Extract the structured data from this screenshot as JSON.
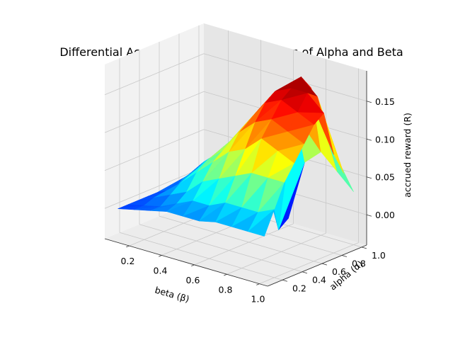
{
  "chart_data": {
    "type": "surface3d",
    "title": "Differential Accrued Reward across values of Alpha and Beta",
    "xlabel": "beta (β)",
    "ylabel": "alpha (α)",
    "zlabel": "accrued reward (R)",
    "x_ticks": [
      "0.2",
      "0.4",
      "0.6",
      "0.8",
      "1.0"
    ],
    "y_ticks": [
      "0.2",
      "0.4",
      "0.6",
      "0.8",
      "1.0"
    ],
    "z_ticks": [
      "0.00",
      "0.05",
      "0.10",
      "0.15"
    ],
    "xlim": [
      0.05,
      1.05
    ],
    "ylim": [
      0.05,
      1.05
    ],
    "zlim": [
      -0.04,
      0.19
    ],
    "colormap": "jet",
    "grid": true,
    "x": [
      0.1,
      0.2,
      0.3,
      0.4,
      0.5,
      0.6,
      0.7,
      0.8,
      0.9,
      1.0
    ],
    "y": [
      0.1,
      0.2,
      0.3,
      0.4,
      0.5,
      0.6,
      0.7,
      0.8,
      0.9,
      1.0
    ],
    "z": [
      [
        0.0,
        0.005,
        0.01,
        0.015,
        0.015,
        0.015,
        0.02,
        0.02,
        0.02,
        0.02
      ],
      [
        0.0,
        0.005,
        0.01,
        0.02,
        0.03,
        0.03,
        0.04,
        0.04,
        0.04,
        0.05
      ],
      [
        0.0,
        0.01,
        0.02,
        0.03,
        0.05,
        0.06,
        0.07,
        0.08,
        0.08,
        0.08
      ],
      [
        0.0,
        0.01,
        0.03,
        0.05,
        0.07,
        0.09,
        0.1,
        0.12,
        0.11,
        0.1
      ],
      [
        0.0,
        0.01,
        0.03,
        0.06,
        0.08,
        0.11,
        0.13,
        0.14,
        0.13,
        0.12
      ],
      [
        0.0,
        0.02,
        0.04,
        0.06,
        0.09,
        0.12,
        0.15,
        0.16,
        0.15,
        0.14
      ],
      [
        0.0,
        0.02,
        0.04,
        0.07,
        0.1,
        0.13,
        0.16,
        0.17,
        0.17,
        0.15
      ],
      [
        0.0,
        0.03,
        0.05,
        0.07,
        0.09,
        0.03,
        0.15,
        0.18,
        0.16,
        0.09
      ],
      [
        0.0,
        0.02,
        0.03,
        0.05,
        0.06,
        -0.04,
        0.12,
        0.16,
        0.1,
        0.06
      ],
      [
        0.0,
        0.01,
        0.02,
        0.02,
        0.0,
        -0.03,
        0.05,
        0.07,
        0.05,
        0.03
      ]
    ]
  }
}
